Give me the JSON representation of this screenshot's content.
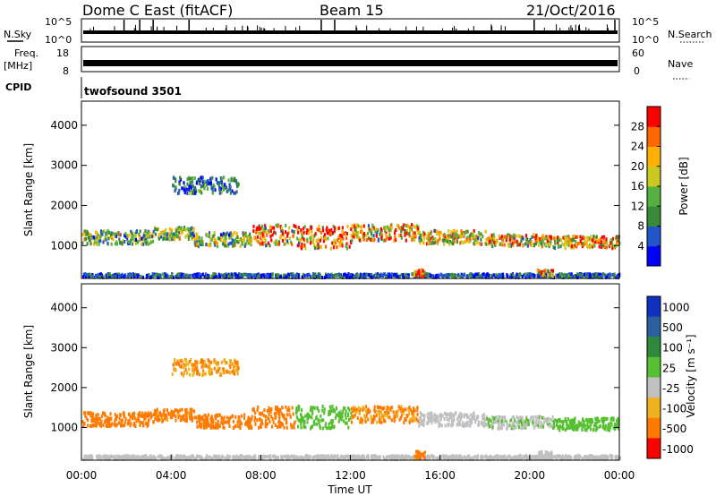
{
  "header": {
    "station": "Dome C East (fitACF)",
    "beam": "Beam 15",
    "date": "21/Oct/2016"
  },
  "top_panels": {
    "nsky_label": "N.Sky",
    "nsky_ticks": [
      "10^5",
      "10^0"
    ],
    "nsky_right_ticks": [
      "10^5",
      "10^0"
    ],
    "nsearch_label": "N.Search",
    "freq_label_1": "Freq.",
    "freq_label_2": "[MHz]",
    "freq_ticks": [
      "18",
      "8"
    ],
    "nave_ticks": [
      "60",
      "0"
    ],
    "nave_label": "Nave",
    "cpid_label": "CPID",
    "cpid_value": "twofsound 3501"
  },
  "time_axis": {
    "ticks": [
      "00:00",
      "04:00",
      "08:00",
      "12:00",
      "16:00",
      "20:00",
      "00:00"
    ],
    "label": "Time UT"
  },
  "chart_data": [
    {
      "type": "heatmap",
      "panel": "power",
      "ylabel": "Slant Range [km]",
      "yticks": [
        "1000",
        "2000",
        "3000",
        "4000"
      ],
      "ylim": [
        180,
        4600
      ],
      "xlim_hours": [
        0,
        24
      ],
      "colorbar_label": "Power [dB]",
      "colorbar_ticks": [
        "4",
        "8",
        "12",
        "16",
        "20",
        "24",
        "28"
      ],
      "colorbar_range": [
        0,
        32
      ],
      "scatter_bands": [
        {
          "t0": 0.0,
          "t1": 3.2,
          "r": 1200,
          "w": 170,
          "v": 14
        },
        {
          "t0": 3.2,
          "t1": 5.0,
          "r": 1300,
          "w": 150,
          "v": 13
        },
        {
          "t0": 5.0,
          "t1": 7.6,
          "r": 1150,
          "w": 170,
          "v": 14
        },
        {
          "t0": 7.6,
          "t1": 9.5,
          "r": 1250,
          "w": 260,
          "v": 22
        },
        {
          "t0": 9.5,
          "t1": 12.0,
          "r": 1200,
          "w": 280,
          "v": 25
        },
        {
          "t0": 12.0,
          "t1": 15.0,
          "r": 1320,
          "w": 200,
          "v": 20
        },
        {
          "t0": 15.0,
          "t1": 18.0,
          "r": 1200,
          "w": 170,
          "v": 18
        },
        {
          "t0": 18.0,
          "t1": 21.0,
          "r": 1120,
          "w": 150,
          "v": 20
        },
        {
          "t0": 21.0,
          "t1": 24.0,
          "r": 1080,
          "w": 150,
          "v": 22
        },
        {
          "t0": 4.0,
          "t1": 7.0,
          "r": 2500,
          "w": 200,
          "v": 8
        },
        {
          "t0": 0.0,
          "t1": 24.0,
          "r": 230,
          "w": 60,
          "v": 6
        },
        {
          "t0": 14.8,
          "t1": 15.3,
          "r": 300,
          "w": 100,
          "v": 26
        },
        {
          "t0": 20.3,
          "t1": 21.0,
          "r": 300,
          "w": 90,
          "v": 24
        }
      ]
    },
    {
      "type": "heatmap",
      "panel": "velocity",
      "ylabel": "Slant Range [km]",
      "yticks": [
        "1000",
        "2000",
        "3000",
        "4000"
      ],
      "ylim": [
        180,
        4600
      ],
      "xlim_hours": [
        0,
        24
      ],
      "colorbar_label": "Velocity [m s⁻¹]",
      "colorbar_ticks": [
        "1000",
        "500",
        "100",
        "25",
        "-25",
        "-100",
        "-500",
        "-1000"
      ],
      "colorbar_levels": [
        "1000",
        "500",
        "100",
        "25",
        "-25",
        "-100",
        "-500",
        "-1000"
      ],
      "scatter_bands": [
        {
          "t0": 0.0,
          "t1": 3.2,
          "r": 1200,
          "w": 170,
          "v": -250
        },
        {
          "t0": 3.2,
          "t1": 5.0,
          "r": 1300,
          "w": 150,
          "v": -150
        },
        {
          "t0": 5.0,
          "t1": 7.6,
          "r": 1150,
          "w": 170,
          "v": -200
        },
        {
          "t0": 7.6,
          "t1": 9.5,
          "r": 1250,
          "w": 260,
          "v": -300
        },
        {
          "t0": 9.5,
          "t1": 12.0,
          "r": 1250,
          "w": 280,
          "v": 50
        },
        {
          "t0": 12.0,
          "t1": 15.0,
          "r": 1320,
          "w": 200,
          "v": -120
        },
        {
          "t0": 15.0,
          "t1": 18.0,
          "r": 1200,
          "w": 170,
          "v": 0
        },
        {
          "t0": 18.0,
          "t1": 21.0,
          "r": 1120,
          "w": 150,
          "v": 20
        },
        {
          "t0": 21.0,
          "t1": 24.0,
          "r": 1080,
          "w": 150,
          "v": 60
        },
        {
          "t0": 4.0,
          "t1": 7.0,
          "r": 2500,
          "w": 200,
          "v": -100
        },
        {
          "t0": 0.0,
          "t1": 24.0,
          "r": 230,
          "w": 60,
          "v": 0
        },
        {
          "t0": 14.8,
          "t1": 15.3,
          "r": 300,
          "w": 100,
          "v": -150
        },
        {
          "t0": 20.3,
          "t1": 21.0,
          "r": 300,
          "w": 90,
          "v": 0
        }
      ]
    }
  ],
  "colors": {
    "power_scale": [
      "#0000ff",
      "#2255cc",
      "#3a8a3a",
      "#55b040",
      "#c8c820",
      "#ffb000",
      "#ff6600",
      "#ff0000"
    ],
    "velocity_scale": [
      "#1030c0",
      "#2a60a0",
      "#2e8a3a",
      "#55c030",
      "#c0c0c0",
      "#f0b020",
      "#ff7a00",
      "#ff0000"
    ]
  }
}
